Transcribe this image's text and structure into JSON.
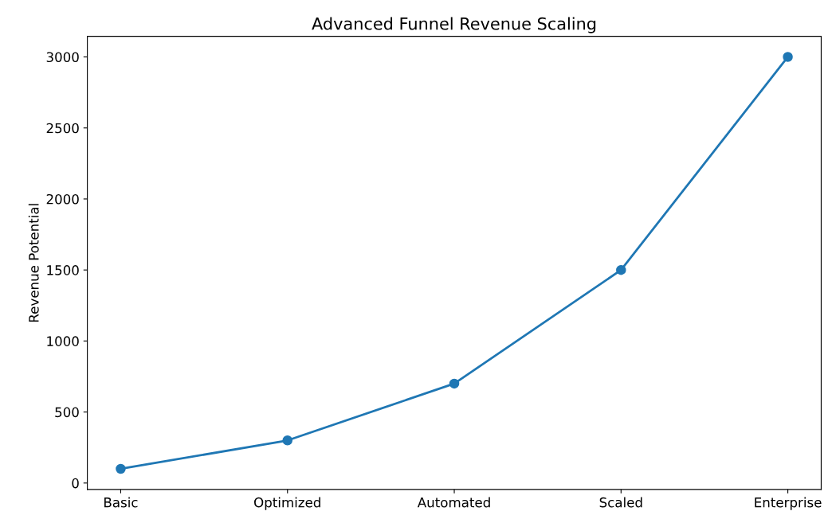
{
  "chart_data": {
    "type": "line",
    "title": "Advanced Funnel Revenue Scaling",
    "ylabel": "Revenue Potential",
    "categories": [
      "Basic",
      "Optimized",
      "Automated",
      "Scaled",
      "Enterprise"
    ],
    "series": [
      {
        "color": "#1f77b4",
        "values": [
          100,
          300,
          700,
          1500,
          3000
        ]
      }
    ],
    "ylim": [
      -45,
      3145
    ],
    "yticks": [
      0,
      500,
      1000,
      1500,
      2000,
      2500,
      3000
    ],
    "marker": "circle",
    "line_style": "solid",
    "grid": false,
    "legend": false
  }
}
